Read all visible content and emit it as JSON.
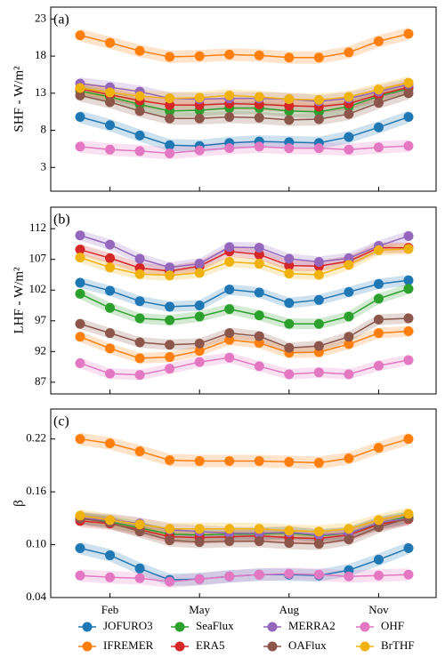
{
  "chart_data": [
    {
      "type": "line",
      "panel_label": "(a)",
      "y_label": "SHF - W/m²",
      "ylim": [
        -0.2,
        24.6
      ],
      "yticks": [
        3,
        8,
        13,
        18,
        23
      ],
      "series": [
        {
          "name": "JOFURO3",
          "color": "#1f77b4",
          "values": [
            9.8,
            8.7,
            7.3,
            6.0,
            5.9,
            6.3,
            6.5,
            6.4,
            6.3,
            7.1,
            8.4,
            9.8
          ]
        },
        {
          "name": "IFREMER",
          "color": "#ff7f0e",
          "values": [
            20.8,
            19.8,
            18.7,
            17.9,
            18.0,
            18.2,
            18.1,
            17.8,
            17.8,
            18.5,
            20.0,
            21.0
          ]
        },
        {
          "name": "SeaFlux",
          "color": "#2ca02c",
          "values": [
            13.3,
            12.5,
            11.5,
            10.6,
            10.7,
            11.0,
            11.0,
            10.6,
            10.5,
            11.2,
            12.6,
            13.6
          ]
        },
        {
          "name": "ERA5",
          "color": "#d62728",
          "values": [
            13.6,
            12.8,
            12.0,
            11.4,
            11.4,
            11.6,
            11.5,
            11.3,
            11.2,
            11.6,
            12.8,
            13.8
          ]
        },
        {
          "name": "MERRA2",
          "color": "#9467bd",
          "values": [
            14.3,
            13.8,
            13.2,
            12.3,
            12.2,
            12.3,
            12.3,
            12.2,
            11.9,
            12.3,
            13.2,
            14.2
          ]
        },
        {
          "name": "OAFlux",
          "color": "#8c564b",
          "values": [
            12.7,
            11.8,
            10.6,
            9.6,
            9.6,
            9.8,
            9.7,
            9.4,
            9.5,
            10.2,
            11.7,
            13.0
          ]
        },
        {
          "name": "OHF",
          "color": "#e377c2",
          "values": [
            5.8,
            5.4,
            5.2,
            4.9,
            5.3,
            5.6,
            5.8,
            5.6,
            5.6,
            5.4,
            5.7,
            5.9
          ]
        },
        {
          "name": "BrTHF",
          "color": "#f0b20f",
          "values": [
            13.7,
            13.1,
            12.6,
            12.3,
            12.4,
            12.7,
            12.5,
            12.2,
            12.1,
            12.5,
            13.5,
            14.4
          ]
        }
      ]
    },
    {
      "type": "line",
      "panel_label": "(b)",
      "y_label": "LHF - W/m²",
      "ylim": [
        85.1,
        115.5
      ],
      "yticks": [
        87,
        92,
        97,
        102,
        107,
        112
      ],
      "series": [
        {
          "values": [
            103.2,
            101.9,
            100.2,
            99.3,
            99.5,
            102.1,
            101.6,
            99.9,
            100.4,
            101.7,
            103.0,
            103.6
          ]
        },
        {
          "values": [
            94.4,
            92.5,
            90.9,
            91.1,
            92.1,
            93.9,
            93.4,
            91.8,
            91.9,
            93.2,
            95.0,
            95.3
          ]
        },
        {
          "values": [
            101.4,
            99.1,
            97.4,
            97.1,
            97.7,
            98.9,
            97.9,
            96.5,
            96.5,
            97.7,
            100.6,
            102.2
          ]
        },
        {
          "values": [
            108.6,
            107.2,
            105.6,
            105.1,
            105.9,
            108.3,
            107.8,
            106.0,
            105.9,
            106.7,
            108.9,
            108.9
          ]
        },
        {
          "values": [
            110.9,
            109.4,
            107.1,
            105.7,
            106.3,
            109.0,
            108.9,
            107.1,
            106.6,
            107.2,
            109.2,
            110.8
          ]
        },
        {
          "values": [
            96.5,
            95.0,
            93.5,
            93.1,
            93.3,
            95.0,
            94.5,
            92.6,
            92.9,
            94.4,
            97.2,
            97.4
          ]
        },
        {
          "values": [
            90.1,
            88.4,
            88.2,
            89.2,
            90.3,
            91.0,
            89.6,
            88.3,
            88.6,
            88.3,
            89.7,
            90.6
          ]
        },
        {
          "values": [
            107.3,
            105.7,
            104.6,
            104.4,
            104.8,
            106.6,
            106.3,
            104.7,
            104.5,
            106.1,
            108.5,
            108.7
          ]
        }
      ]
    },
    {
      "type": "line",
      "panel_label": "(c)",
      "y_label": "β",
      "categories": [
        null,
        "Feb",
        null,
        null,
        "May",
        null,
        null,
        "Aug",
        null,
        null,
        "Nov",
        null
      ],
      "ylim": [
        0.04,
        0.254
      ],
      "yticks": [
        0.04,
        {
          "value": 0.1,
          "label": "0.10"
        },
        0.16,
        0.22
      ],
      "series": [
        {
          "values": [
            0.096,
            0.088,
            0.073,
            0.06,
            0.061,
            0.064,
            0.066,
            0.066,
            0.065,
            0.071,
            0.083,
            0.096
          ]
        },
        {
          "values": [
            0.22,
            0.215,
            0.206,
            0.196,
            0.195,
            0.195,
            0.195,
            0.194,
            0.193,
            0.198,
            0.21,
            0.22
          ]
        },
        {
          "values": [
            0.13,
            0.126,
            0.119,
            0.112,
            0.111,
            0.112,
            0.112,
            0.113,
            0.11,
            0.113,
            0.124,
            0.132
          ]
        },
        {
          "values": [
            0.127,
            0.124,
            0.117,
            0.109,
            0.108,
            0.109,
            0.11,
            0.108,
            0.107,
            0.111,
            0.123,
            0.129
          ]
        },
        {
          "values": [
            0.13,
            0.128,
            0.124,
            0.117,
            0.115,
            0.113,
            0.113,
            0.114,
            0.111,
            0.113,
            0.125,
            0.13
          ]
        },
        {
          "values": [
            0.13,
            0.125,
            0.115,
            0.105,
            0.103,
            0.104,
            0.104,
            0.102,
            0.101,
            0.106,
            0.12,
            0.13
          ]
        },
        {
          "values": [
            0.065,
            0.063,
            0.062,
            0.058,
            0.061,
            0.064,
            0.066,
            0.067,
            0.066,
            0.064,
            0.065,
            0.066
          ]
        },
        {
          "values": [
            0.133,
            0.128,
            0.123,
            0.118,
            0.118,
            0.118,
            0.118,
            0.116,
            0.115,
            0.118,
            0.128,
            0.135
          ]
        }
      ]
    }
  ]
}
